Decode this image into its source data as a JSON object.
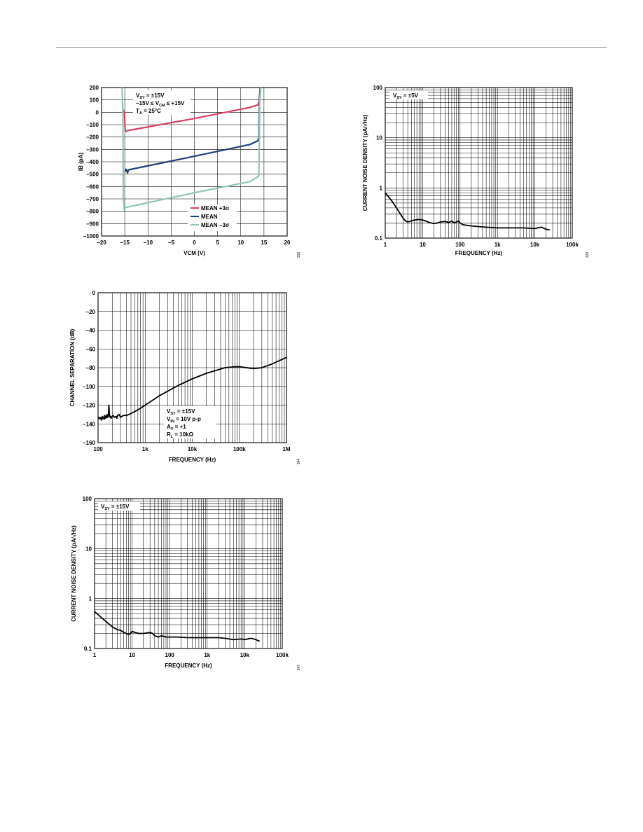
{
  "chart_data": [
    {
      "type": "line",
      "xlabel": "VCM (V)",
      "ylabel": "IB (pA)",
      "xlim": [
        -20,
        20
      ],
      "ylim": [
        -1000,
        200
      ],
      "xticks": [
        "−20",
        "−15",
        "−10",
        "−5",
        "0",
        "5",
        "10",
        "15",
        "20"
      ],
      "yticks": [
        "200",
        "100",
        "0",
        "−100",
        "−200",
        "−300",
        "−400",
        "−500",
        "−600",
        "−700",
        "−800",
        "−900",
        "−1000"
      ],
      "annotations": [
        "VSY = ±15V",
        "−15V ≤ VCM ≤ +15V",
        "TA = 25°C"
      ],
      "figure_number": "316",
      "grid": true,
      "legend_position": "lower-right",
      "series": [
        {
          "name": "MEAN +3σ",
          "color": "#d9415f",
          "x": [
            -15.5,
            -15.3,
            -15.1,
            -14.95,
            -14.85,
            -14.75,
            -14.4,
            0,
            12,
            13.7,
            13.9,
            14.1,
            14.3
          ],
          "y": [
            0,
            20,
            0,
            -120,
            -150,
            -155,
            -148,
            -50,
            40,
            60,
            80,
            150,
            200
          ]
        },
        {
          "name": "MEAN",
          "color": "#1f3f7a",
          "x": [
            -14.9,
            -14.75,
            -14.6,
            -14.4,
            -14.2,
            0,
            12,
            13.7,
            13.9,
            14.0,
            14.2
          ],
          "y": [
            -480,
            -460,
            -470,
            -490,
            -465,
            -355,
            -260,
            -230,
            -200,
            100,
            200
          ]
        },
        {
          "name": "MEAN −3σ",
          "color": "#8fc6ad",
          "x": [
            -15.6,
            -15.4,
            -15.3,
            -15.1,
            -14.9,
            0,
            12,
            13.7,
            13.9,
            14.1,
            14.3
          ],
          "y": [
            200,
            0,
            -700,
            -790,
            -770,
            -650,
            -560,
            -520,
            -510,
            100,
            200
          ]
        }
      ]
    },
    {
      "type": "line",
      "xlabel": "FREQUENCY (Hz)",
      "ylabel": "CURRENT NOISE DENSITY (pA/√Hz)",
      "xscale": "log",
      "yscale": "log",
      "xlim": [
        1,
        100000
      ],
      "ylim": [
        0.1,
        100
      ],
      "xticks": [
        "1",
        "10",
        "100",
        "1k",
        "10k",
        "100k"
      ],
      "yticks": [
        "100",
        "10",
        "1",
        "0.1"
      ],
      "annotations": [
        "VSY = ±5V"
      ],
      "figure_number": "320",
      "grid": true,
      "series": [
        {
          "color": "#000000",
          "x": [
            1,
            1.5,
            2,
            3,
            3.5,
            4,
            5,
            6,
            8,
            10,
            12,
            15,
            20,
            25,
            30,
            40,
            50,
            60,
            70,
            80,
            90,
            100,
            120,
            150,
            200,
            300,
            500,
            1000,
            2000,
            5000,
            10000,
            12000,
            15000,
            20000,
            25000
          ],
          "y": [
            0.8,
            0.55,
            0.4,
            0.25,
            0.22,
            0.21,
            0.22,
            0.23,
            0.235,
            0.23,
            0.22,
            0.205,
            0.195,
            0.2,
            0.21,
            0.215,
            0.205,
            0.22,
            0.2,
            0.21,
            0.22,
            0.2,
            0.185,
            0.18,
            0.175,
            0.17,
            0.165,
            0.16,
            0.16,
            0.16,
            0.155,
            0.16,
            0.165,
            0.15,
            0.145
          ]
        }
      ]
    },
    {
      "type": "line",
      "xlabel": "FREQUENCY (Hz)",
      "ylabel": "CHANNEL SEPARATION (dB)",
      "xscale": "log",
      "xlim": [
        100,
        1000000
      ],
      "ylim": [
        -160,
        0
      ],
      "xticks": [
        "100",
        "1k",
        "10k",
        "100k",
        "1M"
      ],
      "yticks": [
        "0",
        "−20",
        "−40",
        "−60",
        "−80",
        "−100",
        "−120",
        "−140",
        "−160"
      ],
      "annotations": [
        "VSY = ±15V",
        "VIN = 10V p-p",
        "AV = +1",
        "RL = 10kΩ"
      ],
      "figure_number": "344",
      "grid": true,
      "series": [
        {
          "color": "#000000",
          "x": [
            100,
            105,
            110,
            115,
            120,
            125,
            130,
            135,
            140,
            145,
            150,
            155,
            160,
            165,
            170,
            175,
            180,
            185,
            190,
            200,
            210,
            220,
            240,
            250,
            260,
            280,
            300,
            320,
            350,
            400,
            500,
            700,
            1000,
            2000,
            5000,
            10000,
            20000,
            50000,
            80000,
            100000,
            200000,
            300000,
            500000,
            1000000
          ],
          "y": [
            -134,
            -133,
            -135,
            -133,
            -136,
            -132,
            -134,
            -135,
            -131,
            -134,
            -133,
            -130,
            -133,
            -132,
            -120,
            -131,
            -133,
            -132,
            -134,
            -132,
            -131,
            -133,
            -132,
            -134,
            -131,
            -130,
            -133,
            -132,
            -131,
            -131,
            -129,
            -125,
            -120,
            -110,
            -99,
            -92,
            -86,
            -80,
            -79,
            -79,
            -81,
            -80,
            -76,
            -69
          ]
        }
      ]
    },
    {
      "type": "line",
      "xlabel": "FREQUENCY (Hz)",
      "ylabel": "CURRENT NOISE DENSITY (pA/√Hz)",
      "xscale": "log",
      "yscale": "log",
      "xlim": [
        1,
        100000
      ],
      "ylim": [
        0.1,
        100
      ],
      "xticks": [
        "1",
        "10",
        "100",
        "1k",
        "10k",
        "100k"
      ],
      "yticks": [
        "100",
        "10",
        "1",
        "0.1"
      ],
      "annotations": [
        "VSY = ±15V"
      ],
      "figure_number": "347",
      "grid": true,
      "series": [
        {
          "color": "#000000",
          "x": [
            1,
            1.5,
            2,
            3,
            4,
            5,
            6,
            7,
            8,
            9,
            10,
            12,
            15,
            20,
            25,
            30,
            35,
            40,
            50,
            60,
            70,
            80,
            100,
            150,
            200,
            300,
            500,
            1000,
            2000,
            3000,
            5000,
            8000,
            10000,
            12000,
            15000,
            20000,
            25000
          ],
          "y": [
            0.55,
            0.42,
            0.35,
            0.27,
            0.24,
            0.23,
            0.21,
            0.2,
            0.19,
            0.2,
            0.22,
            0.21,
            0.2,
            0.2,
            0.205,
            0.21,
            0.2,
            0.18,
            0.17,
            0.18,
            0.175,
            0.17,
            0.17,
            0.17,
            0.168,
            0.165,
            0.165,
            0.165,
            0.165,
            0.16,
            0.15,
            0.155,
            0.15,
            0.155,
            0.16,
            0.15,
            0.14
          ]
        }
      ]
    }
  ]
}
